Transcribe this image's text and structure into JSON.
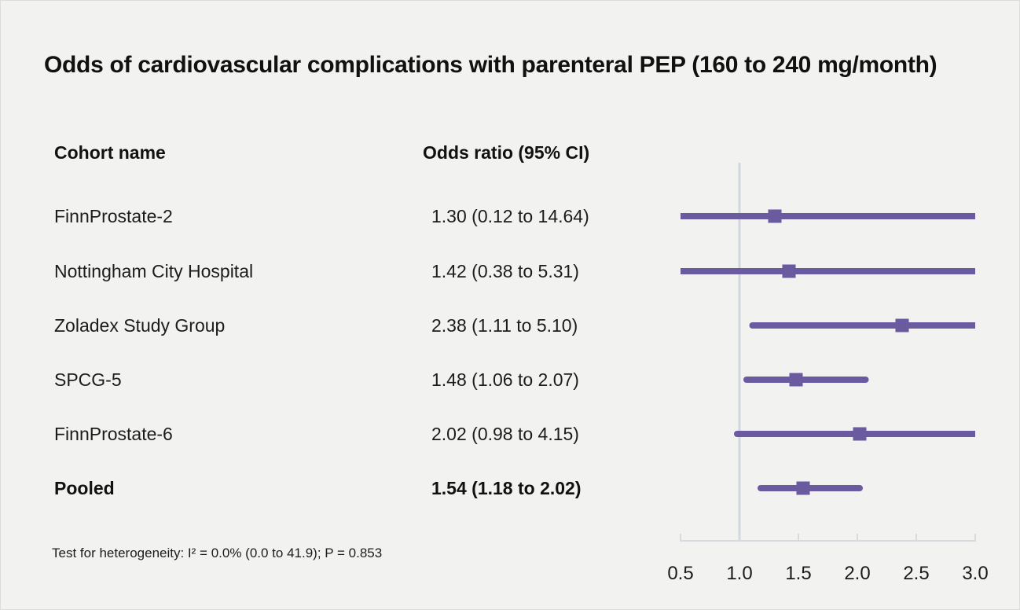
{
  "title": "Odds of cardiovascular complications with parenteral PEP (160 to 240 mg/month)",
  "columns": {
    "cohort_header": "Cohort name",
    "or_header": "Odds ratio (95% CI)"
  },
  "footnote": "Test for heterogeneity: I² = 0.0% (0.0 to 41.9); P = 0.853",
  "colors": {
    "background": "#f2f2f0",
    "marker_purple": "#6a5ba0",
    "reference_line": "#d2d7df",
    "axis_line": "#d7dade",
    "text": "#1b1b1b"
  },
  "chart_data": {
    "type": "forest",
    "title": "Odds of cardiovascular complications with parenteral PEP (160 to 240 mg/month)",
    "xlim": [
      0.5,
      3.0
    ],
    "x_ticks": [
      "0.5",
      "1.0",
      "1.5",
      "2.0",
      "2.5",
      "3.0"
    ],
    "x_tick_values": [
      0.5,
      1.0,
      1.5,
      2.0,
      2.5,
      3.0
    ],
    "reference_line": 1.0,
    "legend_position": "none",
    "grid": false,
    "rows": [
      {
        "name": "FinnProstate-2",
        "label": "1.30 (0.12 to 14.64)",
        "or": 1.3,
        "ci_low": 0.12,
        "ci_high": 14.64,
        "bold": false
      },
      {
        "name": "Nottingham City Hospital",
        "label": "1.42 (0.38 to 5.31)",
        "or": 1.42,
        "ci_low": 0.38,
        "ci_high": 5.31,
        "bold": false
      },
      {
        "name": "Zoladex Study Group",
        "label": "2.38 (1.11 to 5.10)",
        "or": 2.38,
        "ci_low": 1.11,
        "ci_high": 5.1,
        "bold": false
      },
      {
        "name": "SPCG-5",
        "label": "1.48 (1.06 to 2.07)",
        "or": 1.48,
        "ci_low": 1.06,
        "ci_high": 2.07,
        "bold": false
      },
      {
        "name": "FinnProstate-6",
        "label": "2.02 (0.98 to 4.15)",
        "or": 2.02,
        "ci_low": 0.98,
        "ci_high": 4.15,
        "bold": false
      },
      {
        "name": "Pooled",
        "label": "1.54 (1.18 to 2.02)",
        "or": 1.54,
        "ci_low": 1.18,
        "ci_high": 2.02,
        "bold": true
      }
    ]
  }
}
